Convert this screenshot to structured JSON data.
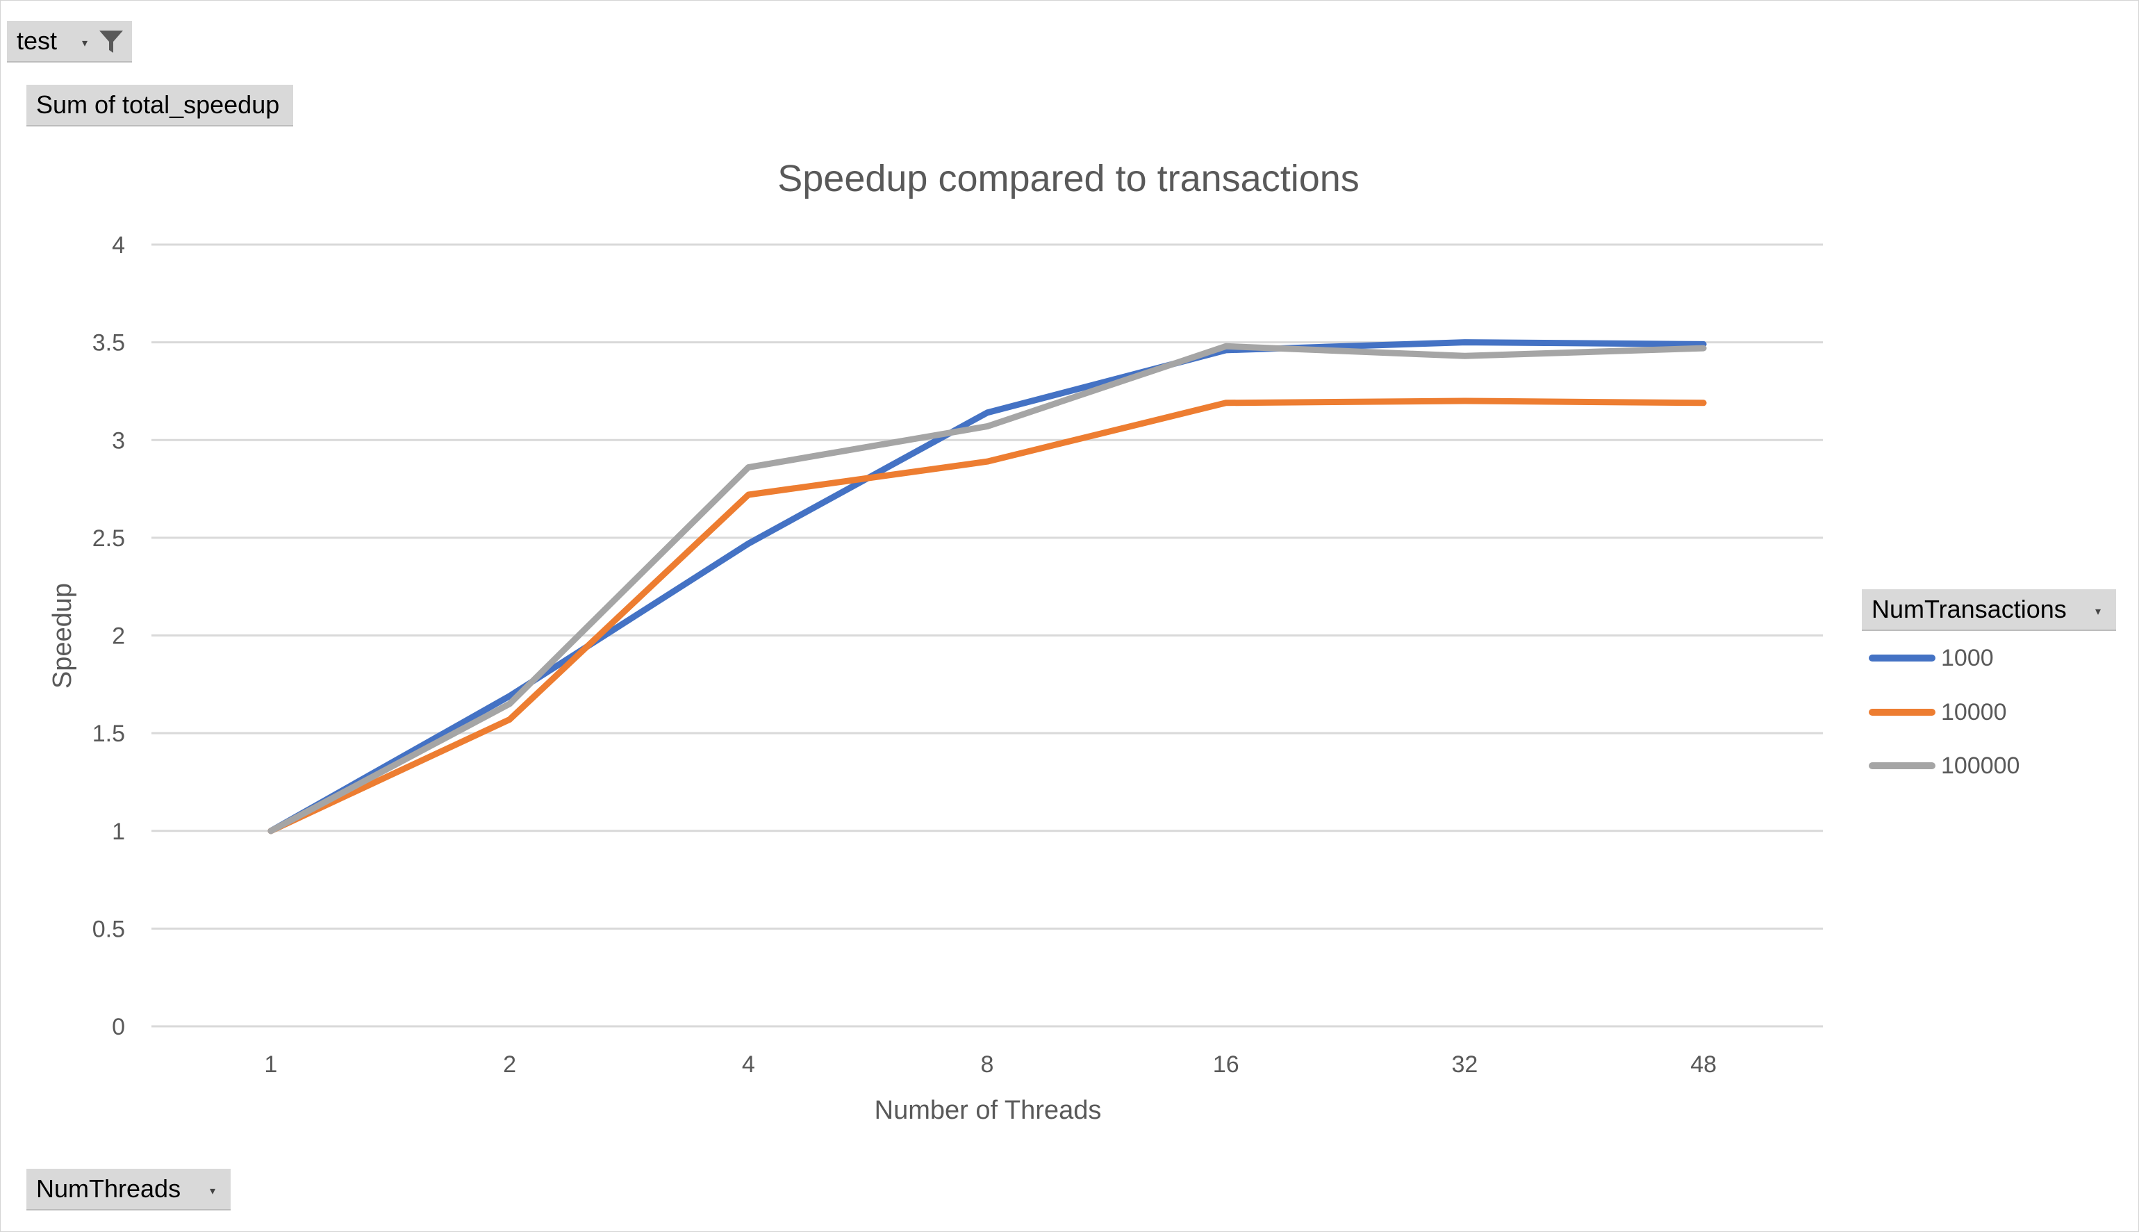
{
  "pivot": {
    "filter_label": "test",
    "value_field": "Sum of total_speedup",
    "axis_field": "NumThreads",
    "legend_field": "NumTransactions"
  },
  "colors": {
    "series_1000": "#4472c4",
    "series_10000": "#ed7d31",
    "series_100000": "#a5a5a5"
  },
  "icons": [
    "funnel-icon",
    "dropdown-arrow-icon"
  ],
  "chart_data": {
    "type": "line",
    "title": "Speedup compared to transactions",
    "xlabel": "Number of Threads",
    "ylabel": "Speedup",
    "categories": [
      "1",
      "2",
      "4",
      "8",
      "16",
      "32",
      "48"
    ],
    "ylim": [
      0,
      4
    ],
    "yticks": [
      "0",
      "0.5",
      "1",
      "1.5",
      "2",
      "2.5",
      "3",
      "3.5",
      "4"
    ],
    "grid": true,
    "legend_position": "right",
    "series": [
      {
        "name": "1000",
        "values": [
          1.0,
          1.69,
          2.47,
          3.14,
          3.46,
          3.5,
          3.49
        ]
      },
      {
        "name": "10000",
        "values": [
          1.0,
          1.57,
          2.72,
          2.89,
          3.19,
          3.2,
          3.19
        ]
      },
      {
        "name": "100000",
        "values": [
          1.0,
          1.65,
          2.86,
          3.07,
          3.48,
          3.43,
          3.47
        ]
      }
    ]
  }
}
